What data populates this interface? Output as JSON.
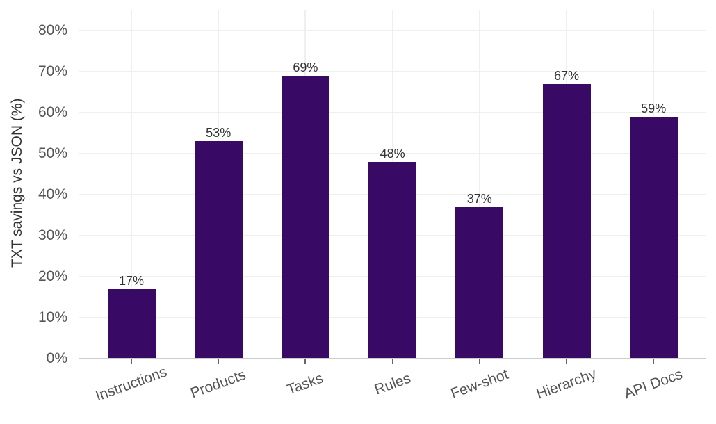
{
  "chart_data": {
    "type": "bar",
    "title": "",
    "xlabel": "",
    "ylabel": "TXT savings vs JSON (%)",
    "categories": [
      "Instructions",
      "Products",
      "Tasks",
      "Rules",
      "Few-shot",
      "Hierarchy",
      "API Docs"
    ],
    "values": [
      17,
      53,
      69,
      48,
      37,
      67,
      59
    ],
    "bar_labels": [
      "17%",
      "53%",
      "69%",
      "48%",
      "37%",
      "67%",
      "59%"
    ],
    "ylim": [
      0,
      85
    ],
    "yticks": [
      0,
      10,
      20,
      30,
      40,
      50,
      60,
      70,
      80
    ],
    "ytick_labels": [
      "0%",
      "10%",
      "20%",
      "30%",
      "40%",
      "50%",
      "60%",
      "70%",
      "80%"
    ],
    "grid": true,
    "legend": null,
    "bar_color": "#380A66",
    "xtick_rotation": -20
  }
}
